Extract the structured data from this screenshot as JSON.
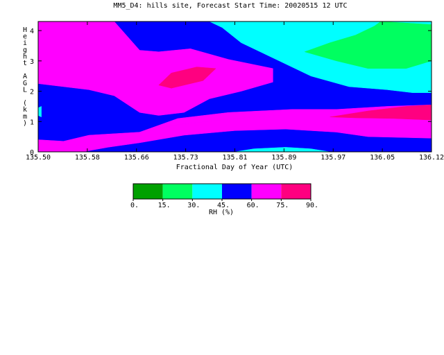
{
  "chart_data": {
    "type": "heatmap",
    "title": "MM5_D4: hills site,  Forecast Start Time: 20020515 12 UTC",
    "xlabel": "Fractional Day of Year (UTC)",
    "ylabel": "Height AGL (km)",
    "xlim": [
      135.5,
      136.12
    ],
    "ylim": [
      0,
      4.3
    ],
    "x_ticks": [
      "135.50",
      "135.58",
      "135.66",
      "135.73",
      "135.81",
      "135.89",
      "135.97",
      "136.05",
      "136.12"
    ],
    "y_ticks": [
      "0",
      "1",
      "2",
      "3",
      "4"
    ],
    "colorbar": {
      "label": "RH (%)",
      "levels": [
        0,
        15,
        30,
        45,
        60,
        75,
        90
      ],
      "tick_labels": [
        "0.",
        "15.",
        "30.",
        "45.",
        "60.",
        "75.",
        "90."
      ],
      "colors": [
        "#00a000",
        "#00ff60",
        "#00ffff",
        "#0000ff",
        "#ff00ff",
        "#ff0080"
      ]
    },
    "regions": [
      {
        "level": "45-60",
        "color": "#0000ff",
        "points": [
          [
            135.5,
            0
          ],
          [
            136.12,
            0
          ],
          [
            136.12,
            4.3
          ],
          [
            135.5,
            4.3
          ]
        ]
      },
      {
        "level": "30-45",
        "color": "#00ffff",
        "points": [
          [
            135.77,
            4.3
          ],
          [
            136.12,
            4.3
          ],
          [
            136.12,
            1.95
          ],
          [
            136.09,
            1.95
          ],
          [
            136.05,
            2.05
          ],
          [
            135.99,
            2.15
          ],
          [
            135.93,
            2.5
          ],
          [
            135.87,
            3.1
          ],
          [
            135.82,
            3.6
          ],
          [
            135.79,
            4.1
          ]
        ]
      },
      {
        "level": "15-30",
        "color": "#00ff60",
        "points": [
          [
            136.04,
            4.3
          ],
          [
            136.12,
            4.2
          ],
          [
            136.12,
            3.0
          ],
          [
            136.08,
            2.75
          ],
          [
            136.02,
            2.75
          ],
          [
            135.97,
            3.0
          ],
          [
            135.92,
            3.3
          ],
          [
            135.96,
            3.6
          ],
          [
            136.0,
            3.85
          ],
          [
            136.03,
            4.15
          ]
        ]
      },
      {
        "level": "60-75",
        "color": "#ff00ff",
        "points": [
          [
            135.5,
            4.3
          ],
          [
            135.62,
            4.3
          ],
          [
            135.66,
            3.35
          ],
          [
            135.69,
            3.3
          ],
          [
            135.74,
            3.4
          ],
          [
            135.8,
            3.05
          ],
          [
            135.87,
            2.75
          ],
          [
            135.87,
            2.3
          ],
          [
            135.82,
            2.0
          ],
          [
            135.77,
            1.75
          ],
          [
            135.73,
            1.3
          ],
          [
            135.69,
            1.2
          ],
          [
            135.66,
            1.3
          ],
          [
            135.62,
            1.85
          ],
          [
            135.58,
            2.05
          ],
          [
            135.5,
            2.25
          ]
        ]
      },
      {
        "level": "75-90",
        "color": "#ff0080",
        "points": [
          [
            135.69,
            2.2
          ],
          [
            135.71,
            2.6
          ],
          [
            135.75,
            2.8
          ],
          [
            135.78,
            2.75
          ],
          [
            135.76,
            2.35
          ],
          [
            135.71,
            2.1
          ]
        ]
      },
      {
        "level": "60-75",
        "color": "#ff00ff",
        "points": [
          [
            135.5,
            0.4
          ],
          [
            135.54,
            0.35
          ],
          [
            135.58,
            0.55
          ],
          [
            135.62,
            0.6
          ],
          [
            135.66,
            0.65
          ],
          [
            135.72,
            0.9
          ],
          [
            135.81,
            1.1
          ],
          [
            135.88,
            1.2
          ],
          [
            135.97,
            1.2
          ],
          [
            136.05,
            1.1
          ],
          [
            136.12,
            1.1
          ],
          [
            136.12,
            0.45
          ],
          [
            136.02,
            0.5
          ],
          [
            135.97,
            0.65
          ],
          [
            135.89,
            0.75
          ],
          [
            135.81,
            0.7
          ],
          [
            135.73,
            0.55
          ],
          [
            135.66,
            0.3
          ],
          [
            135.61,
            0.15
          ],
          [
            135.57,
            0
          ],
          [
            135.5,
            0
          ]
        ]
      },
      {
        "level": "60-75",
        "color": "#ff00ff",
        "points": [
          [
            135.66,
            0.65
          ],
          [
            135.72,
            1.1
          ],
          [
            135.8,
            1.3
          ],
          [
            135.9,
            1.4
          ],
          [
            135.97,
            1.4
          ],
          [
            136.05,
            1.5
          ],
          [
            136.12,
            1.55
          ],
          [
            136.12,
            1.1
          ],
          [
            136.05,
            1.1
          ],
          [
            135.97,
            1.2
          ],
          [
            135.88,
            1.2
          ],
          [
            135.81,
            1.1
          ],
          [
            135.72,
            0.9
          ]
        ]
      },
      {
        "level": "75-90",
        "color": "#ff0080",
        "points": [
          [
            135.96,
            1.15
          ],
          [
            136.02,
            1.35
          ],
          [
            136.08,
            1.5
          ],
          [
            136.12,
            1.55
          ],
          [
            136.12,
            1.05
          ],
          [
            136.06,
            1.1
          ],
          [
            136.0,
            1.12
          ]
        ]
      },
      {
        "level": "30-45",
        "color": "#00ffff",
        "points": [
          [
            135.81,
            0
          ],
          [
            135.96,
            0
          ],
          [
            135.93,
            0.1
          ],
          [
            135.89,
            0.15
          ],
          [
            135.84,
            0.1
          ]
        ]
      },
      {
        "level": "30-45",
        "color": "#00ffff",
        "points": [
          [
            135.5,
            1.2
          ],
          [
            135.505,
            1.15
          ],
          [
            135.505,
            1.5
          ],
          [
            135.5,
            1.45
          ]
        ]
      }
    ]
  }
}
